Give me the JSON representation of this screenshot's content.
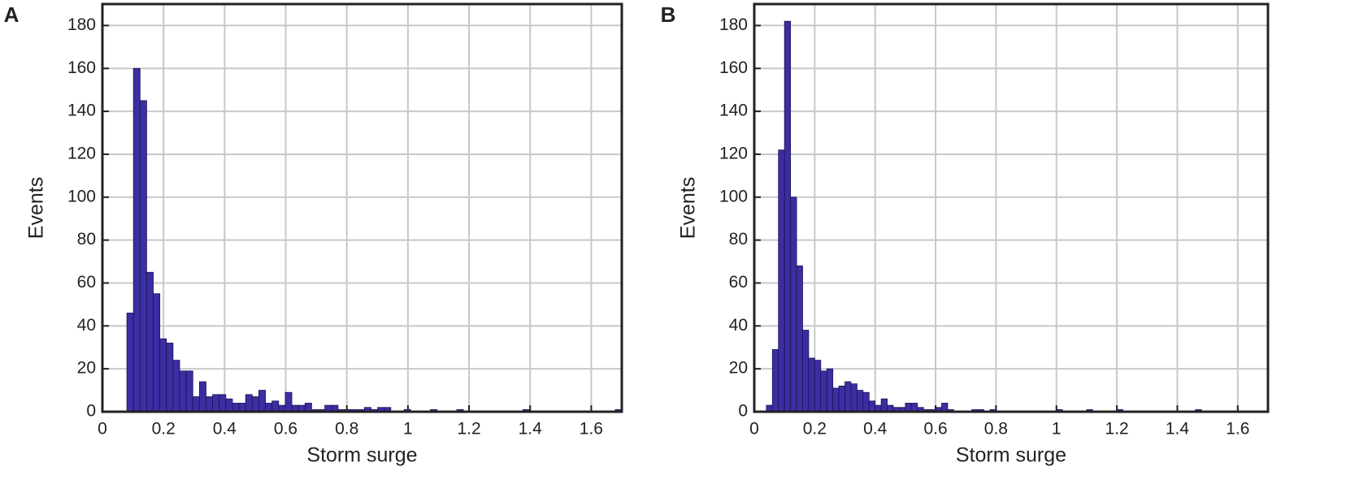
{
  "chart_data": [
    {
      "type": "histogram",
      "panel_label": "A",
      "xlabel": "Storm surge",
      "ylabel": "Events",
      "color": "#3b2ea3",
      "edgecolor": "#1a1450",
      "grid": true,
      "xlim": [
        0,
        1.7
      ],
      "ylim": [
        0,
        190
      ],
      "xticks": [
        0,
        0.2,
        0.4,
        0.6,
        0.8,
        1,
        1.2,
        1.4,
        1.6
      ],
      "yticks": [
        0,
        20,
        40,
        60,
        80,
        100,
        120,
        140,
        160,
        180
      ],
      "bins": [
        0.08,
        0.1016,
        0.1232,
        0.1448,
        0.1664,
        0.188,
        0.2096,
        0.2312,
        0.2528,
        0.2744,
        0.296,
        0.3176,
        0.3392,
        0.3608,
        0.3824,
        0.404,
        0.4256,
        0.4472,
        0.4688,
        0.4904,
        0.512,
        0.5336,
        0.5552,
        0.5768,
        0.5984,
        0.62,
        0.6416,
        0.6632,
        0.6848,
        0.7064,
        0.728,
        0.7496,
        0.7712,
        0.7928,
        0.8144,
        0.836,
        0.8576,
        0.8792,
        0.9008,
        0.9224,
        0.944,
        0.9656,
        0.9872,
        1.0088,
        1.0304,
        1.052,
        1.0736,
        1.0952,
        1.1168,
        1.1384,
        1.16,
        1.1816,
        1.2032,
        1.2248,
        1.2464,
        1.268,
        1.2896,
        1.3112,
        1.3328,
        1.3544,
        1.376,
        1.3976,
        1.4192,
        1.4408,
        1.4624,
        1.484,
        1.5056,
        1.5272,
        1.5488,
        1.5704,
        1.592,
        1.6136,
        1.6352,
        1.6568,
        1.6784,
        1.7
      ],
      "values": [
        46,
        160,
        145,
        65,
        55,
        34,
        32,
        24,
        19,
        19,
        7,
        14,
        7,
        8,
        8,
        6,
        4,
        4,
        8,
        7,
        10,
        4,
        5,
        3,
        9,
        3,
        3,
        4,
        1,
        1,
        3,
        3,
        1,
        1,
        1,
        1,
        2,
        1,
        2,
        2,
        0,
        0,
        1,
        0,
        0,
        0,
        1,
        0,
        0,
        0,
        1,
        0,
        0,
        0,
        0,
        0,
        0,
        0,
        0,
        0,
        1,
        0,
        0,
        0,
        0,
        0,
        0,
        0,
        0,
        0,
        0,
        0,
        0,
        0,
        1
      ]
    },
    {
      "type": "histogram",
      "panel_label": "B",
      "xlabel": "Storm surge",
      "ylabel": "Events",
      "color": "#3b2ea3",
      "edgecolor": "#1a1450",
      "grid": true,
      "xlim": [
        0,
        1.7
      ],
      "ylim": [
        0,
        190
      ],
      "xticks": [
        0,
        0.2,
        0.4,
        0.6,
        0.8,
        1,
        1.2,
        1.4,
        1.6
      ],
      "yticks": [
        0,
        20,
        40,
        60,
        80,
        100,
        120,
        140,
        160,
        180
      ],
      "bins": [
        0.04,
        0.06,
        0.08,
        0.1,
        0.12,
        0.14,
        0.16,
        0.18,
        0.2,
        0.22,
        0.24,
        0.26,
        0.28,
        0.3,
        0.32,
        0.34,
        0.36,
        0.38,
        0.4,
        0.42,
        0.44,
        0.46,
        0.48,
        0.5,
        0.52,
        0.54,
        0.56,
        0.58,
        0.6,
        0.62,
        0.64,
        0.66,
        0.68,
        0.7,
        0.72,
        0.74,
        0.76,
        0.78,
        0.8,
        0.82,
        0.84,
        0.86,
        0.88,
        0.9,
        0.92,
        0.94,
        0.96,
        0.98,
        1.0,
        1.02,
        1.04,
        1.06,
        1.08,
        1.1,
        1.12,
        1.14,
        1.16,
        1.18,
        1.2,
        1.22,
        1.24,
        1.26,
        1.28,
        1.3,
        1.32,
        1.34,
        1.36,
        1.38,
        1.4,
        1.42,
        1.44,
        1.46,
        1.48
      ],
      "values": [
        3,
        29,
        122,
        182,
        100,
        68,
        38,
        25,
        24,
        19,
        20,
        11,
        12,
        14,
        13,
        10,
        9,
        5,
        3,
        6,
        3,
        2,
        2,
        4,
        4,
        2,
        1,
        1,
        2,
        4,
        1,
        0,
        0,
        0,
        1,
        1,
        0,
        1,
        0,
        0,
        0,
        0,
        0,
        0,
        0,
        0,
        0,
        0,
        1,
        0,
        0,
        0,
        0,
        1,
        0,
        0,
        0,
        0,
        1,
        0,
        0,
        0,
        0,
        0,
        0,
        0,
        0,
        0,
        0,
        0,
        0,
        1
      ]
    }
  ]
}
